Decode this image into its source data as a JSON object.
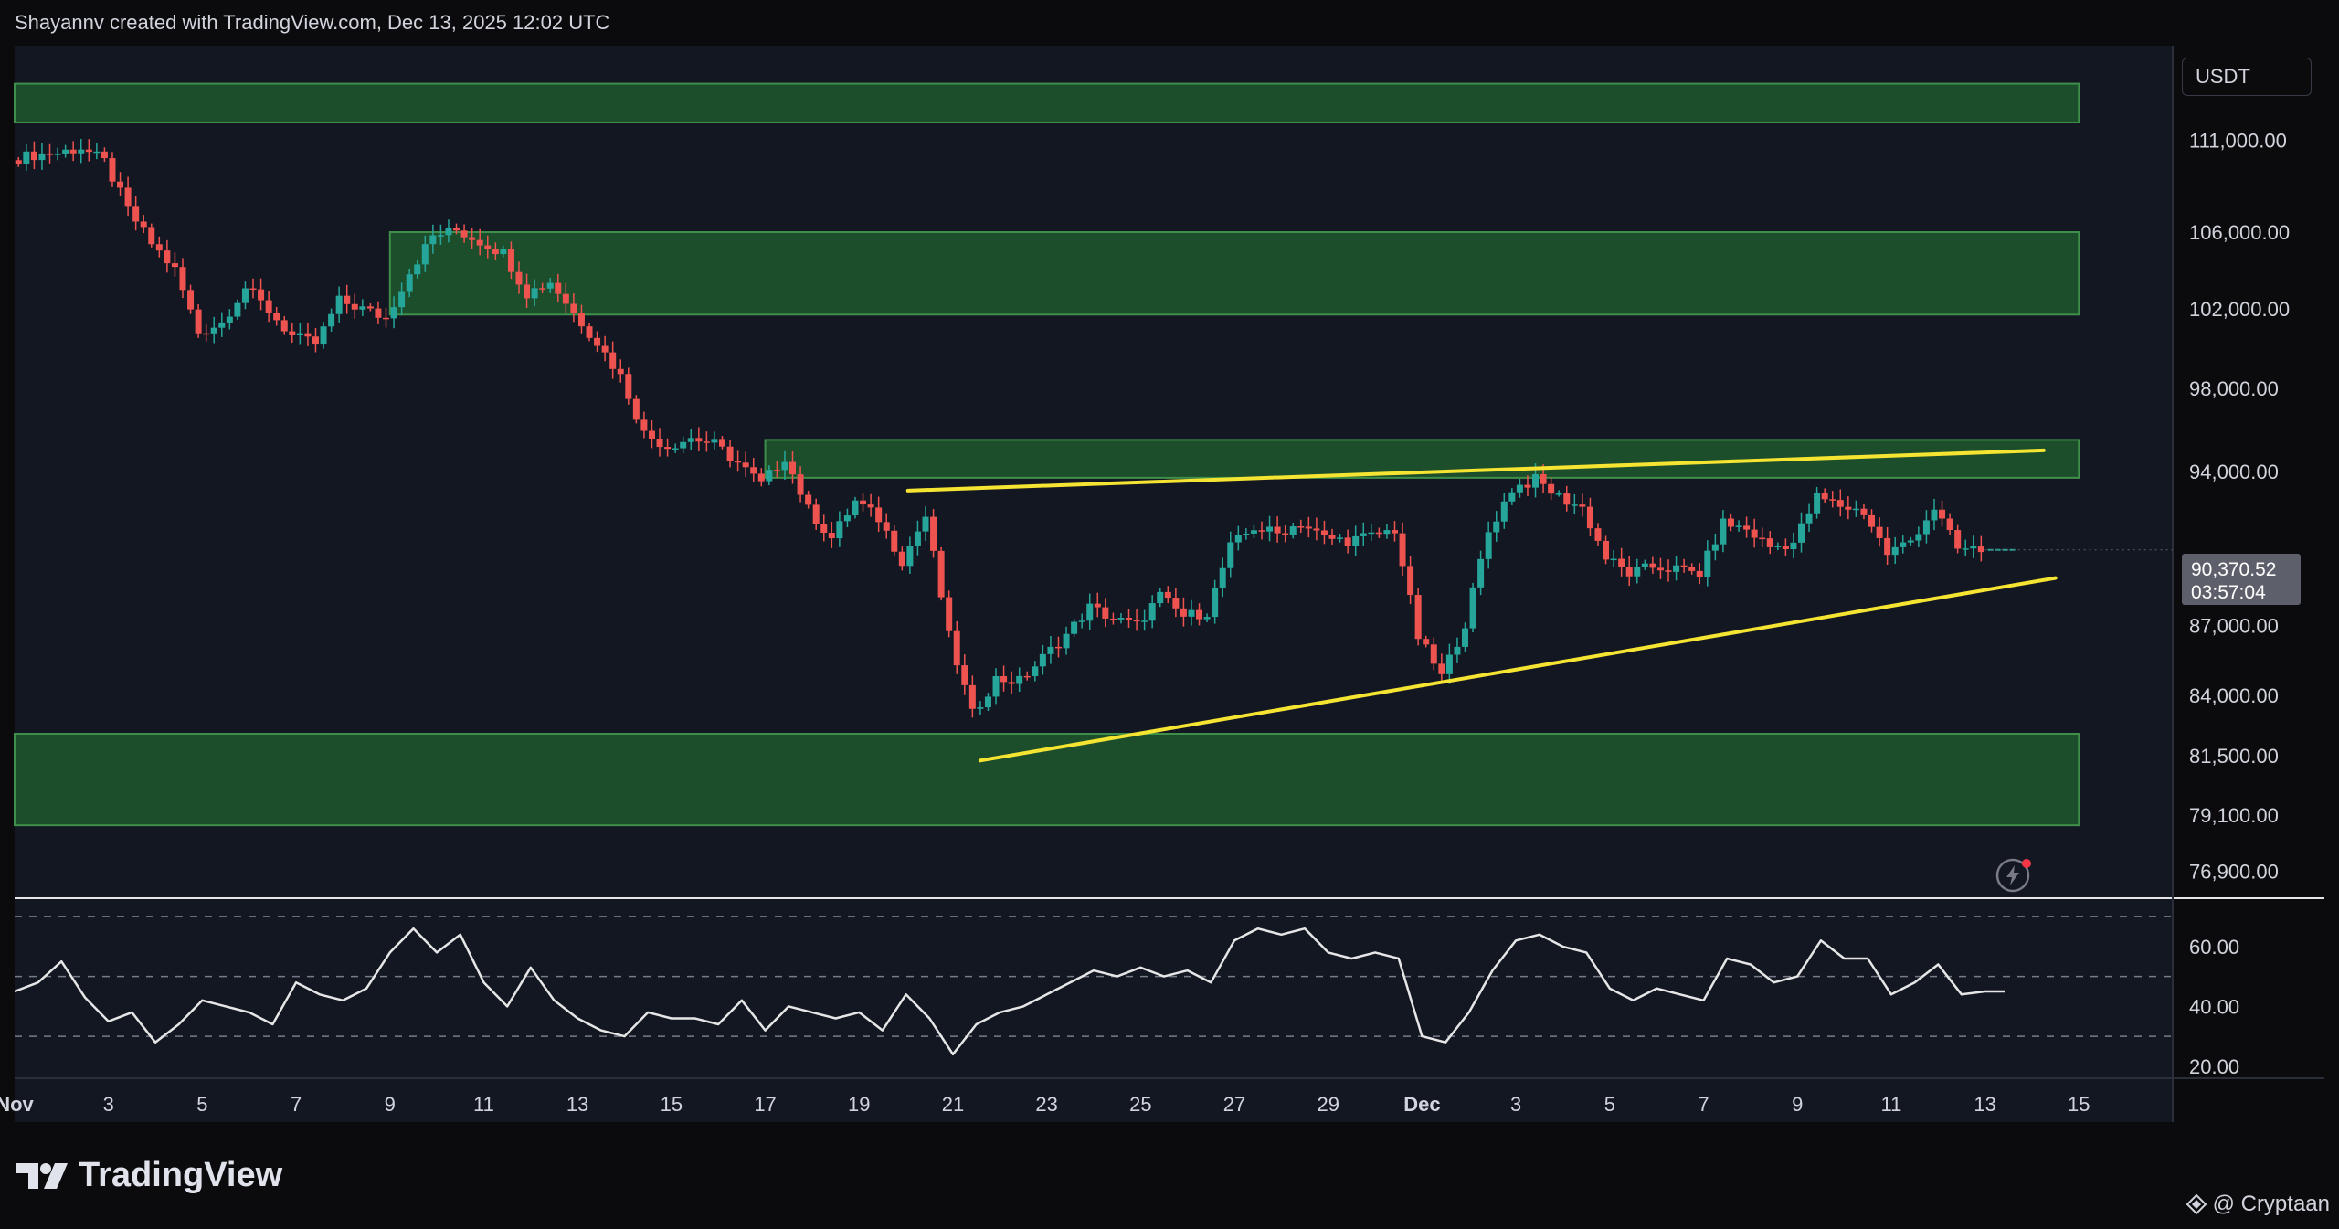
{
  "header": {
    "attribution": "Shayannv created with TradingView.com, Dec 13, 2025 12:02 UTC"
  },
  "currency_tag": "USDT",
  "price_label": {
    "price": "90,370.52",
    "countdown": "03:57:04"
  },
  "branding": {
    "logo_text": "TradingView",
    "credit": "@ Cryptaan"
  },
  "colors": {
    "up": "#26a69a",
    "down": "#ef5350",
    "zone": "#1f5d2e",
    "zone_border": "#3f8f4a",
    "trendline": "#f5e431",
    "rsi_line": "#e6e6e6",
    "pane_bg": "#131722"
  },
  "icons": {
    "logo": "tradingview-logo-icon",
    "credit": "diamond-icon",
    "alert": "lightning-alert-icon"
  },
  "chart_data": [
    {
      "type": "candlestick",
      "title": "",
      "y_axis": {
        "scale": "log",
        "ylim": [
          75800,
          116400
        ],
        "tick_labels": [
          "111,000.00",
          "106,000.00",
          "102,000.00",
          "98,000.00",
          "94,000.00",
          "87,000.00",
          "84,000.00",
          "81,500.00",
          "79,100.00",
          "76,900.00"
        ]
      },
      "x_axis": {
        "range": [
          "2025-11-01",
          "2025-12-17"
        ],
        "tick_labels": [
          {
            "date": "2025-11-01",
            "label": "Nov"
          },
          {
            "date": "2025-11-03",
            "label": "3"
          },
          {
            "date": "2025-11-05",
            "label": "5"
          },
          {
            "date": "2025-11-07",
            "label": "7"
          },
          {
            "date": "2025-11-09",
            "label": "9"
          },
          {
            "date": "2025-11-11",
            "label": "11"
          },
          {
            "date": "2025-11-13",
            "label": "13"
          },
          {
            "date": "2025-11-15",
            "label": "15"
          },
          {
            "date": "2025-11-17",
            "label": "17"
          },
          {
            "date": "2025-11-19",
            "label": "19"
          },
          {
            "date": "2025-11-21",
            "label": "21"
          },
          {
            "date": "2025-11-23",
            "label": "23"
          },
          {
            "date": "2025-11-25",
            "label": "25"
          },
          {
            "date": "2025-11-27",
            "label": "27"
          },
          {
            "date": "2025-11-29",
            "label": "29"
          },
          {
            "date": "2025-12-01",
            "label": "Dec"
          },
          {
            "date": "2025-12-03",
            "label": "3"
          },
          {
            "date": "2025-12-05",
            "label": "5"
          },
          {
            "date": "2025-12-07",
            "label": "7"
          },
          {
            "date": "2025-12-09",
            "label": "9"
          },
          {
            "date": "2025-12-11",
            "label": "11"
          },
          {
            "date": "2025-12-13",
            "label": "13"
          },
          {
            "date": "2025-12-15",
            "label": "15"
          }
        ]
      },
      "price_path": [
        [
          "2025-11-01 00:00",
          109900
        ],
        [
          "2025-11-01 12:00",
          110200
        ],
        [
          "2025-11-02 00:00",
          110300
        ],
        [
          "2025-11-02 12:00",
          110600
        ],
        [
          "2025-11-03 00:00",
          109800
        ],
        [
          "2025-11-03 12:00",
          107200
        ],
        [
          "2025-11-04 00:00",
          105400
        ],
        [
          "2025-11-04 12:00",
          104000
        ],
        [
          "2025-11-05 00:00",
          100800
        ],
        [
          "2025-11-05 12:00",
          101300
        ],
        [
          "2025-11-06 00:00",
          103100
        ],
        [
          "2025-11-06 12:00",
          101900
        ],
        [
          "2025-11-07 00:00",
          100600
        ],
        [
          "2025-11-07 12:00",
          100200
        ],
        [
          "2025-11-08 00:00",
          102400
        ],
        [
          "2025-11-08 12:00",
          102000
        ],
        [
          "2025-11-09 00:00",
          101500
        ],
        [
          "2025-11-09 12:00",
          103900
        ],
        [
          "2025-11-10 00:00",
          105800
        ],
        [
          "2025-11-10 12:00",
          106100
        ],
        [
          "2025-11-11 00:00",
          105500
        ],
        [
          "2025-11-11 12:00",
          104900
        ],
        [
          "2025-11-12 00:00",
          102800
        ],
        [
          "2025-11-12 12:00",
          103400
        ],
        [
          "2025-11-13 00:00",
          101800
        ],
        [
          "2025-11-13 12:00",
          100300
        ],
        [
          "2025-11-14 00:00",
          98600
        ],
        [
          "2025-11-14 12:00",
          95800
        ],
        [
          "2025-11-15 00:00",
          95200
        ],
        [
          "2025-11-15 12:00",
          95600
        ],
        [
          "2025-11-16 00:00",
          95300
        ],
        [
          "2025-11-16 12:00",
          94400
        ],
        [
          "2025-11-17 00:00",
          93400
        ],
        [
          "2025-11-17 12:00",
          94700
        ],
        [
          "2025-11-18 00:00",
          92200
        ],
        [
          "2025-11-18 12:00",
          90900
        ],
        [
          "2025-11-19 00:00",
          92600
        ],
        [
          "2025-11-19 12:00",
          91800
        ],
        [
          "2025-11-20 00:00",
          89900
        ],
        [
          "2025-11-20 12:00",
          91900
        ],
        [
          "2025-11-21 00:00",
          86500
        ],
        [
          "2025-11-21 12:00",
          83200
        ],
        [
          "2025-11-22 00:00",
          84700
        ],
        [
          "2025-11-22 12:00",
          84600
        ],
        [
          "2025-11-23 00:00",
          85600
        ],
        [
          "2025-11-23 12:00",
          86600
        ],
        [
          "2025-11-24 00:00",
          87800
        ],
        [
          "2025-11-24 12:00",
          87300
        ],
        [
          "2025-11-25 00:00",
          87000
        ],
        [
          "2025-11-25 12:00",
          88300
        ],
        [
          "2025-11-26 00:00",
          87400
        ],
        [
          "2025-11-26 12:00",
          87600
        ],
        [
          "2025-11-27 00:00",
          90500
        ],
        [
          "2025-11-27 12:00",
          91400
        ],
        [
          "2025-11-28 00:00",
          91100
        ],
        [
          "2025-11-28 12:00",
          91600
        ],
        [
          "2025-11-29 00:00",
          90900
        ],
        [
          "2025-11-29 12:00",
          90800
        ],
        [
          "2025-11-30 00:00",
          91000
        ],
        [
          "2025-11-30 12:00",
          91300
        ],
        [
          "2025-12-01 00:00",
          86500
        ],
        [
          "2025-12-01 12:00",
          84800
        ],
        [
          "2025-12-02 00:00",
          87100
        ],
        [
          "2025-12-02 12:00",
          91200
        ],
        [
          "2025-12-03 00:00",
          93200
        ],
        [
          "2025-12-03 12:00",
          93600
        ],
        [
          "2025-12-04 00:00",
          92800
        ],
        [
          "2025-12-04 12:00",
          92300
        ],
        [
          "2025-12-05 00:00",
          90000
        ],
        [
          "2025-12-05 12:00",
          89300
        ],
        [
          "2025-12-06 00:00",
          89600
        ],
        [
          "2025-12-06 12:00",
          89500
        ],
        [
          "2025-12-07 00:00",
          89300
        ],
        [
          "2025-12-07 12:00",
          91600
        ],
        [
          "2025-12-08 00:00",
          91300
        ],
        [
          "2025-12-08 12:00",
          90500
        ],
        [
          "2025-12-09 00:00",
          90700
        ],
        [
          "2025-12-09 12:00",
          92800
        ],
        [
          "2025-12-10 00:00",
          92400
        ],
        [
          "2025-12-10 12:00",
          92100
        ],
        [
          "2025-12-11 00:00",
          90200
        ],
        [
          "2025-12-11 12:00",
          90800
        ],
        [
          "2025-12-12 00:00",
          92300
        ],
        [
          "2025-12-12 12:00",
          90400
        ],
        [
          "2025-12-13 00:00",
          90370
        ]
      ],
      "zones": [
        {
          "top": 114200,
          "bottom": 112000,
          "from": "2025-11-01",
          "to": "2025-12-15"
        },
        {
          "top": 106000,
          "bottom": 101700,
          "from": "2025-11-09",
          "to": "2025-12-15"
        },
        {
          "top": 95500,
          "bottom": 93700,
          "from": "2025-11-17",
          "to": "2025-12-15"
        },
        {
          "top": 82400,
          "bottom": 78700,
          "from": "2025-11-01",
          "to": "2025-12-15"
        }
      ],
      "trendlines": [
        {
          "name": "resistance",
          "points": [
            [
              "2025-11-20 01:00",
              93100
            ],
            [
              "2025-12-14 06:00",
              95000
            ]
          ]
        },
        {
          "name": "support",
          "points": [
            [
              "2025-11-21 14:00",
              81300
            ],
            [
              "2025-12-14 12:00",
              89100
            ]
          ]
        }
      ]
    },
    {
      "type": "line",
      "title": "",
      "y_axis": {
        "ylim": [
          16,
          74
        ],
        "tick_labels": [
          "60.00",
          "40.00",
          "20.00"
        ],
        "band": [
          30,
          50,
          70
        ]
      },
      "rsi_path": [
        [
          "2025-11-01 00:00",
          45
        ],
        [
          "2025-11-01 12:00",
          48
        ],
        [
          "2025-11-02 00:00",
          55
        ],
        [
          "2025-11-02 12:00",
          43
        ],
        [
          "2025-11-03 00:00",
          35
        ],
        [
          "2025-11-03 12:00",
          38
        ],
        [
          "2025-11-04 00:00",
          28
        ],
        [
          "2025-11-04 12:00",
          34
        ],
        [
          "2025-11-05 00:00",
          42
        ],
        [
          "2025-11-05 12:00",
          40
        ],
        [
          "2025-11-06 00:00",
          38
        ],
        [
          "2025-11-06 12:00",
          34
        ],
        [
          "2025-11-07 00:00",
          48
        ],
        [
          "2025-11-07 12:00",
          44
        ],
        [
          "2025-11-08 00:00",
          42
        ],
        [
          "2025-11-08 12:00",
          46
        ],
        [
          "2025-11-09 00:00",
          58
        ],
        [
          "2025-11-09 12:00",
          66
        ],
        [
          "2025-11-10 00:00",
          58
        ],
        [
          "2025-11-10 12:00",
          64
        ],
        [
          "2025-11-11 00:00",
          48
        ],
        [
          "2025-11-11 12:00",
          40
        ],
        [
          "2025-11-12 00:00",
          53
        ],
        [
          "2025-11-12 12:00",
          42
        ],
        [
          "2025-11-13 00:00",
          36
        ],
        [
          "2025-11-13 12:00",
          32
        ],
        [
          "2025-11-14 00:00",
          30
        ],
        [
          "2025-11-14 12:00",
          38
        ],
        [
          "2025-11-15 00:00",
          36
        ],
        [
          "2025-11-15 12:00",
          36
        ],
        [
          "2025-11-16 00:00",
          34
        ],
        [
          "2025-11-16 12:00",
          42
        ],
        [
          "2025-11-17 00:00",
          32
        ],
        [
          "2025-11-17 12:00",
          40
        ],
        [
          "2025-11-18 00:00",
          38
        ],
        [
          "2025-11-18 12:00",
          36
        ],
        [
          "2025-11-19 00:00",
          38
        ],
        [
          "2025-11-19 12:00",
          32
        ],
        [
          "2025-11-20 00:00",
          44
        ],
        [
          "2025-11-20 12:00",
          36
        ],
        [
          "2025-11-21 00:00",
          24
        ],
        [
          "2025-11-21 12:00",
          34
        ],
        [
          "2025-11-22 00:00",
          38
        ],
        [
          "2025-11-22 12:00",
          40
        ],
        [
          "2025-11-23 00:00",
          44
        ],
        [
          "2025-11-23 12:00",
          48
        ],
        [
          "2025-11-24 00:00",
          52
        ],
        [
          "2025-11-24 12:00",
          50
        ],
        [
          "2025-11-25 00:00",
          53
        ],
        [
          "2025-11-25 12:00",
          50
        ],
        [
          "2025-11-26 00:00",
          52
        ],
        [
          "2025-11-26 12:00",
          48
        ],
        [
          "2025-11-27 00:00",
          62
        ],
        [
          "2025-11-27 12:00",
          66
        ],
        [
          "2025-11-28 00:00",
          64
        ],
        [
          "2025-11-28 12:00",
          66
        ],
        [
          "2025-11-29 00:00",
          58
        ],
        [
          "2025-11-29 12:00",
          56
        ],
        [
          "2025-11-30 00:00",
          58
        ],
        [
          "2025-11-30 12:00",
          56
        ],
        [
          "2025-12-01 00:00",
          30
        ],
        [
          "2025-12-01 12:00",
          28
        ],
        [
          "2025-12-02 00:00",
          38
        ],
        [
          "2025-12-02 12:00",
          52
        ],
        [
          "2025-12-03 00:00",
          62
        ],
        [
          "2025-12-03 12:00",
          64
        ],
        [
          "2025-12-04 00:00",
          60
        ],
        [
          "2025-12-04 12:00",
          58
        ],
        [
          "2025-12-05 00:00",
          46
        ],
        [
          "2025-12-05 12:00",
          42
        ],
        [
          "2025-12-06 00:00",
          46
        ],
        [
          "2025-12-06 12:00",
          44
        ],
        [
          "2025-12-07 00:00",
          42
        ],
        [
          "2025-12-07 12:00",
          56
        ],
        [
          "2025-12-08 00:00",
          54
        ],
        [
          "2025-12-08 12:00",
          48
        ],
        [
          "2025-12-09 00:00",
          50
        ],
        [
          "2025-12-09 12:00",
          62
        ],
        [
          "2025-12-10 00:00",
          56
        ],
        [
          "2025-12-10 12:00",
          56
        ],
        [
          "2025-12-11 00:00",
          44
        ],
        [
          "2025-12-11 12:00",
          48
        ],
        [
          "2025-12-12 00:00",
          54
        ],
        [
          "2025-12-12 12:00",
          44
        ],
        [
          "2025-12-13 00:00",
          45
        ],
        [
          "2025-12-13 10:00",
          45
        ]
      ]
    }
  ]
}
